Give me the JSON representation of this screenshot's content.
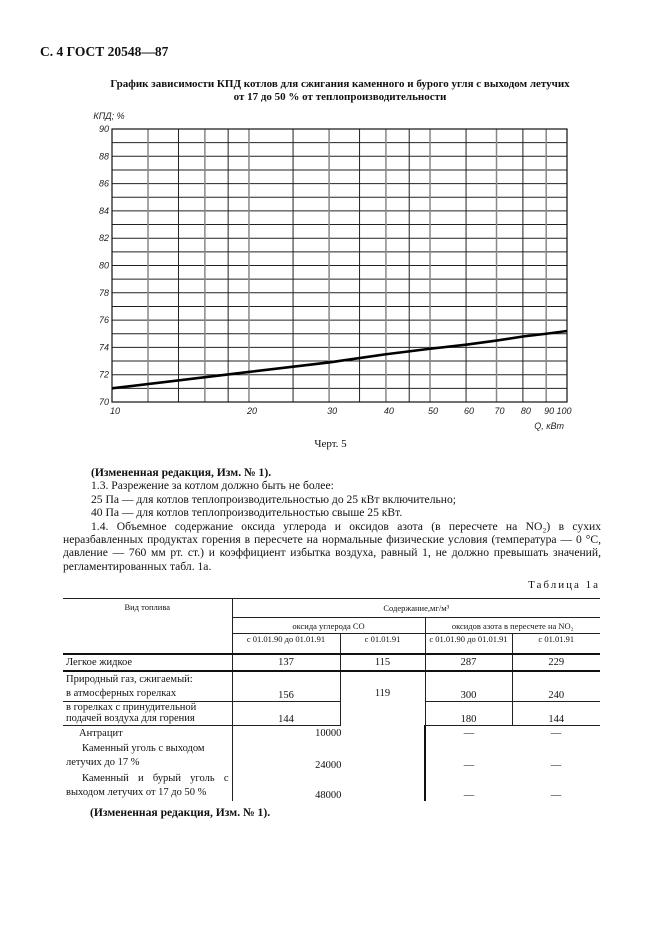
{
  "header": "С. 4 ГОСТ 20548—87",
  "chart_title_line1": "График зависимости КПД котлов для сжигания каменного и бурого угля с выходом летучих",
  "chart_title_line2": "от 17 до 50 % от теплопроизводительности",
  "chart_data": {
    "type": "line",
    "ylabel": "КПД; %",
    "xlabel": "Q, кВт",
    "x_scale": "log",
    "xlim": [
      10,
      100
    ],
    "ylim": [
      70,
      90
    ],
    "x_ticks": [
      10,
      20,
      30,
      40,
      50,
      60,
      70,
      80,
      90,
      100
    ],
    "x_gridlines": [
      10,
      12,
      14,
      16,
      18,
      20,
      25,
      30,
      35,
      40,
      45,
      50,
      60,
      70,
      80,
      90,
      100
    ],
    "y_ticks": [
      70,
      72,
      74,
      76,
      78,
      80,
      82,
      84,
      86,
      88,
      90
    ],
    "y_gridline_step": 1,
    "grid": true,
    "x": [
      10,
      20,
      30,
      40,
      50,
      60,
      70,
      80,
      90,
      100
    ],
    "y": [
      71.0,
      72.2,
      72.9,
      73.5,
      73.9,
      74.2,
      74.5,
      74.8,
      75.0,
      75.2
    ]
  },
  "caption": "Черт. 5",
  "amend1": "(Измененная редакция, Изм. № 1).",
  "p13": "1.3. Разрежение за котлом должно быть не более:",
  "p13a": "25 Па — для котлов теплопроизводительностью до 25 кВт включительно;",
  "p13b": "40 Па — для котлов теплопроизводительностью свыше 25 кВт.",
  "p14": "1.4. Объемное содержание оксида углерода и оксидов азота (в пересчете на NO₂) в сухих неразбавленных продуктах горения в пересчете на нормальные физические условия (температура — 0 °С, давление — 760 мм рт. ст.) и коэффициент избытка воздуха, равный 1, не должно превышать значений, регламентированных табл. 1а.",
  "table_label": "Таблица 1а",
  "table": {
    "h_fuel": "Вид топлива",
    "h_content": "Содержание,мг/м³",
    "h_co": "оксида углерода СО",
    "h_nox": "оксидов азота в пересчете на NO₂",
    "h_p1": "с 01.01.90 до 01.01.91",
    "h_p2": "с 01.01.91",
    "rows": [
      {
        "name": "Легкое жидкое",
        "v": [
          "137",
          "115",
          "287",
          "229"
        ]
      },
      {
        "name": "Природный газ, сжигаемый:"
      },
      {
        "name": "в атмосферных горелках",
        "v": [
          "156",
          "119",
          "300",
          "240"
        ]
      },
      {
        "name": "в горелках с принудительной подачей воздуха для горения",
        "v": [
          "144",
          "",
          "180",
          "144"
        ]
      },
      {
        "name": "Антрацит",
        "v": [
          "10000",
          "—",
          "—"
        ]
      },
      {
        "name": "Каменный уголь с выходом летучих до 17 %",
        "v": [
          "24000",
          "—",
          "—"
        ]
      },
      {
        "name": "Каменный и бурый уголь с выходом летучих от 17 до 50 %",
        "v": [
          "48000",
          "—",
          "—"
        ]
      }
    ]
  },
  "amend2": "(Измененная редакция, Изм. № 1)."
}
